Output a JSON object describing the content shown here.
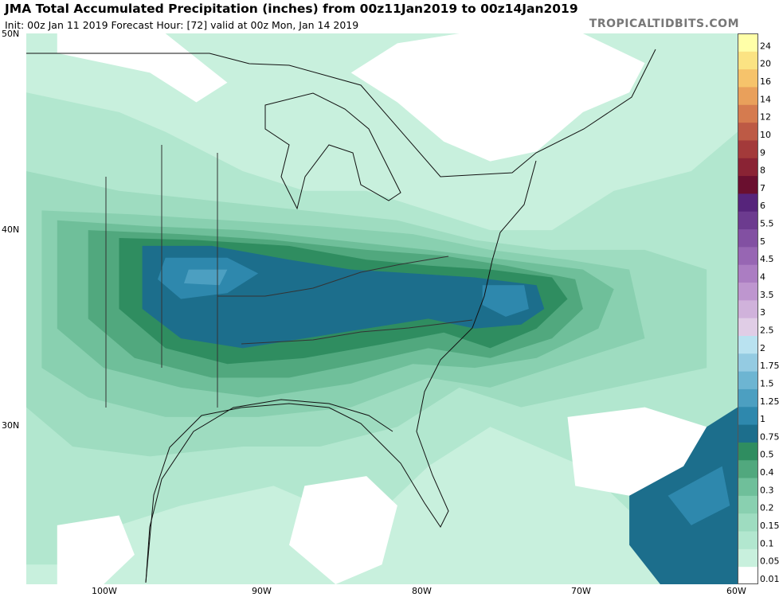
{
  "header": {
    "title": "JMA Total Accumulated Precipitation (inches) from 00z11Jan2019 to 00z14Jan2019",
    "subtitle": "Init: 00z Jan 11 2019   Forecast Hour: [72]   valid at 00z Mon, Jan 14 2019",
    "credit": "TROPICALTIDBITS.COM"
  },
  "axes": {
    "lat_labels": [
      "50N",
      "40N",
      "30N"
    ],
    "lon_labels": [
      "100W",
      "90W",
      "80W",
      "70W",
      "60W"
    ]
  },
  "legend": {
    "levels": [
      "0.01",
      "0.05",
      "0.1",
      "0.15",
      "0.2",
      "0.3",
      "0.4",
      "0.5",
      "0.75",
      "1",
      "1.25",
      "1.5",
      "1.75",
      "2",
      "2.5",
      "3",
      "3.5",
      "4",
      "4.5",
      "5",
      "5.5",
      "6",
      "7",
      "8",
      "9",
      "10",
      "12",
      "14",
      "16",
      "20",
      "24"
    ],
    "colors": [
      "#ffffff",
      "#c8f0dd",
      "#b2e7cf",
      "#9edcc0",
      "#89d0b0",
      "#6fbf9a",
      "#51a87e",
      "#2f8d60",
      "#1c6e8c",
      "#2e88ad",
      "#4c9fc1",
      "#6db5d2",
      "#94cbe2",
      "#b9e2f0",
      "#e0cde6",
      "#d0b2db",
      "#be96cf",
      "#ab7dc2",
      "#9766b3",
      "#8250a2",
      "#6c3b8f",
      "#56247b",
      "#6a0f2f",
      "#8a2334",
      "#a33a3a",
      "#bd5a45",
      "#d57b4f",
      "#e9a05b",
      "#f6c36b",
      "#fbe383",
      "#ffffa8"
    ]
  },
  "map": {
    "regions": [
      {
        "level": "0.05",
        "points": [
          [
            -106,
            50
          ],
          [
            -60,
            50
          ],
          [
            -60,
            22
          ],
          [
            -106,
            22
          ]
        ]
      },
      {
        "level": "0.1",
        "points": [
          [
            -106,
            47
          ],
          [
            -100,
            46
          ],
          [
            -97,
            45
          ],
          [
            -92,
            43
          ],
          [
            -88,
            42
          ],
          [
            -84,
            42
          ],
          [
            -80,
            41
          ],
          [
            -76,
            40
          ],
          [
            -72,
            40
          ],
          [
            -68,
            42
          ],
          [
            -63,
            43
          ],
          [
            -60,
            45
          ],
          [
            -60,
            24
          ],
          [
            -66,
            25
          ],
          [
            -70,
            28
          ],
          [
            -76,
            30
          ],
          [
            -80,
            28
          ],
          [
            -84,
            25
          ],
          [
            -90,
            27
          ],
          [
            -96,
            26
          ],
          [
            -100,
            25
          ],
          [
            -104,
            23
          ],
          [
            -106,
            23
          ]
        ]
      },
      {
        "level": "0.15",
        "points": [
          [
            -106,
            43
          ],
          [
            -100,
            42
          ],
          [
            -94,
            41.5
          ],
          [
            -88,
            41
          ],
          [
            -82,
            40.5
          ],
          [
            -77,
            39.5
          ],
          [
            -72,
            39
          ],
          [
            -66,
            39
          ],
          [
            -62,
            38
          ],
          [
            -62,
            33
          ],
          [
            -68,
            32
          ],
          [
            -74,
            31
          ],
          [
            -78,
            32
          ],
          [
            -82,
            30
          ],
          [
            -87,
            29
          ],
          [
            -92,
            29
          ],
          [
            -98,
            28.5
          ],
          [
            -103,
            29
          ],
          [
            -106,
            31
          ]
        ]
      },
      {
        "level": "0.2",
        "points": [
          [
            -105,
            41
          ],
          [
            -99,
            40.8
          ],
          [
            -93,
            40.5
          ],
          [
            -87,
            40.2
          ],
          [
            -81,
            39.8
          ],
          [
            -76,
            39
          ],
          [
            -71,
            38.5
          ],
          [
            -67,
            38
          ],
          [
            -66,
            34.5
          ],
          [
            -70,
            33.5
          ],
          [
            -76,
            32
          ],
          [
            -80,
            32.5
          ],
          [
            -85,
            31
          ],
          [
            -91,
            30.5
          ],
          [
            -97,
            30.5
          ],
          [
            -102,
            31.5
          ],
          [
            -105,
            33
          ]
        ]
      },
      {
        "level": "0.3",
        "points": [
          [
            -104,
            40.5
          ],
          [
            -98,
            40.2
          ],
          [
            -92,
            40
          ],
          [
            -86,
            39.5
          ],
          [
            -80,
            39
          ],
          [
            -75,
            38.5
          ],
          [
            -70,
            38
          ],
          [
            -68,
            37
          ],
          [
            -69,
            35
          ],
          [
            -73,
            33.5
          ],
          [
            -77,
            33
          ],
          [
            -81,
            33.2
          ],
          [
            -85,
            32.2
          ],
          [
            -91,
            31.5
          ],
          [
            -96,
            32
          ],
          [
            -101,
            33
          ],
          [
            -104,
            35
          ]
        ]
      },
      {
        "level": "0.4",
        "points": [
          [
            -102,
            40
          ],
          [
            -96,
            39.8
          ],
          [
            -90,
            39.5
          ],
          [
            -84,
            39
          ],
          [
            -79,
            38.7
          ],
          [
            -75,
            38.2
          ],
          [
            -70.5,
            37.5
          ],
          [
            -70,
            36
          ],
          [
            -72,
            34.5
          ],
          [
            -76,
            33.5
          ],
          [
            -80,
            34
          ],
          [
            -84,
            33.3
          ],
          [
            -89,
            32.5
          ],
          [
            -94,
            32.5
          ],
          [
            -99,
            33.5
          ],
          [
            -102,
            35.5
          ]
        ]
      },
      {
        "level": "0.5",
        "points": [
          [
            -100,
            39.6
          ],
          [
            -95,
            39.5
          ],
          [
            -89,
            39.2
          ],
          [
            -84,
            38.5
          ],
          [
            -80,
            38.2
          ],
          [
            -76,
            38
          ],
          [
            -72,
            37.6
          ],
          [
            -71,
            36.5
          ],
          [
            -73,
            35
          ],
          [
            -76,
            34
          ],
          [
            -79,
            34.8
          ],
          [
            -83,
            34.2
          ],
          [
            -88,
            33.5
          ],
          [
            -93,
            33.2
          ],
          [
            -97,
            34
          ],
          [
            -100,
            36
          ]
        ]
      },
      {
        "level": "0.75",
        "points": [
          [
            -98.5,
            39.2
          ],
          [
            -94,
            39.2
          ],
          [
            -89,
            38.5
          ],
          [
            -85,
            38
          ],
          [
            -81,
            37.8
          ],
          [
            -77,
            37.6
          ],
          [
            -73,
            37.2
          ],
          [
            -72.5,
            36
          ],
          [
            -74,
            35.2
          ],
          [
            -77,
            35
          ],
          [
            -80,
            35.5
          ],
          [
            -84,
            35
          ],
          [
            -88,
            34.5
          ],
          [
            -92,
            34
          ],
          [
            -96,
            34.5
          ],
          [
            -98.5,
            36
          ]
        ]
      },
      {
        "level": "1",
        "points": [
          [
            -97,
            38.6
          ],
          [
            -93,
            38.6
          ],
          [
            -91,
            37.8
          ],
          [
            -93,
            36.8
          ],
          [
            -96,
            36.5
          ],
          [
            -97.5,
            37.5
          ]
        ]
      },
      {
        "level": "1",
        "points": [
          [
            -76.5,
            37.2
          ],
          [
            -73.8,
            37.2
          ],
          [
            -73.5,
            36
          ],
          [
            -75,
            35.6
          ],
          [
            -76.5,
            36.2
          ]
        ]
      },
      {
        "level": "1.25",
        "points": [
          [
            -95.5,
            38
          ],
          [
            -93,
            38
          ],
          [
            -93.5,
            37.2
          ],
          [
            -95.8,
            37.3
          ]
        ]
      },
      {
        "level": "0.75",
        "points": [
          [
            -67,
            27.5
          ],
          [
            -62,
            30
          ],
          [
            -60,
            31
          ],
          [
            -60,
            22
          ],
          [
            -65,
            22
          ],
          [
            -67,
            24
          ]
        ]
      },
      {
        "level": "1",
        "points": [
          [
            -64.5,
            26.5
          ],
          [
            -61,
            28
          ],
          [
            -60.5,
            26
          ],
          [
            -63,
            25
          ]
        ]
      },
      {
        "level": "0.01",
        "points": [
          [
            -85,
            48
          ],
          [
            -82,
            46.5
          ],
          [
            -79,
            44.5
          ],
          [
            -76,
            43.5
          ],
          [
            -73,
            44
          ],
          [
            -70,
            46
          ],
          [
            -67,
            47
          ],
          [
            -66,
            48.5
          ],
          [
            -70,
            50
          ],
          [
            -78,
            50
          ],
          [
            -82,
            49.5
          ]
        ]
      },
      {
        "level": "0.01",
        "points": [
          [
            -104,
            49
          ],
          [
            -98,
            48
          ],
          [
            -95,
            46.5
          ],
          [
            -93,
            47.5
          ],
          [
            -97,
            50
          ],
          [
            -104,
            50
          ]
        ]
      },
      {
        "level": "0.01",
        "points": [
          [
            -71,
            30.5
          ],
          [
            -66,
            31
          ],
          [
            -62,
            30
          ],
          [
            -63.5,
            28
          ],
          [
            -67,
            26.5
          ],
          [
            -70.5,
            27
          ]
        ]
      },
      {
        "level": "0.01",
        "points": [
          [
            -88,
            27
          ],
          [
            -84,
            27.5
          ],
          [
            -82,
            26
          ],
          [
            -83,
            23
          ],
          [
            -86,
            22
          ],
          [
            -89,
            24
          ]
        ]
      },
      {
        "level": "0.01",
        "points": [
          [
            -104,
            25
          ],
          [
            -100,
            25.5
          ],
          [
            -99,
            23.5
          ],
          [
            -101,
            22
          ],
          [
            -104,
            22
          ]
        ]
      }
    ]
  }
}
